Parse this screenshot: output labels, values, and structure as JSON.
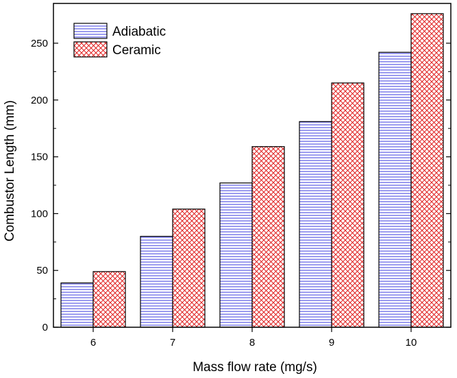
{
  "chart_data": {
    "type": "bar",
    "categories": [
      "6",
      "7",
      "8",
      "9",
      "10"
    ],
    "series": [
      {
        "name": "Adiabatic",
        "values": [
          39,
          80,
          127,
          181,
          242
        ],
        "color": "#3a3adf",
        "pattern": "horizontal-lines"
      },
      {
        "name": "Ceramic",
        "values": [
          49,
          104,
          159,
          215,
          276
        ],
        "color": "#e02020",
        "pattern": "crosshatch"
      }
    ],
    "title": "",
    "xlabel": "Mass flow rate (mg/s)",
    "ylabel": "Combustor Length (mm)",
    "ylim": [
      0,
      285
    ],
    "yticks": [
      0,
      50,
      100,
      150,
      200,
      250
    ],
    "grid": false,
    "legend_position": "top-left"
  }
}
